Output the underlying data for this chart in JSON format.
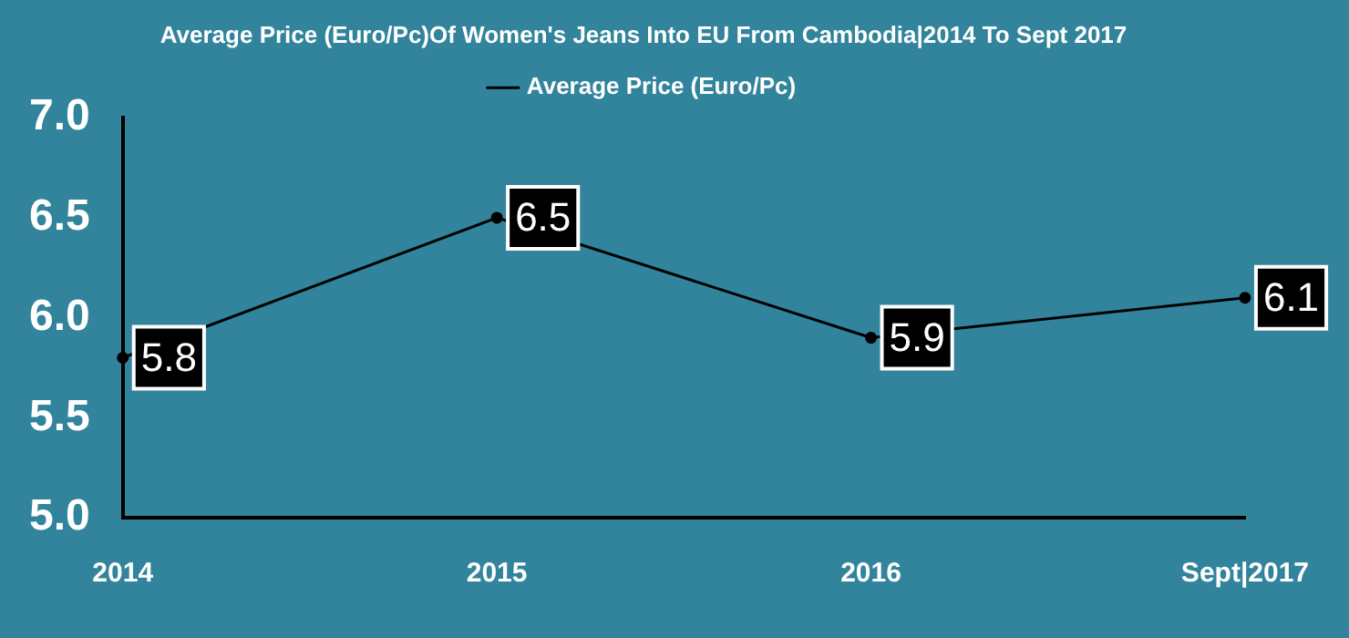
{
  "chart_data": {
    "type": "line",
    "title": "Average Price (Euro/Pc)Of Women's Jeans Into EU From Cambodia|2014 To Sept 2017",
    "categories": [
      "2014",
      "2015",
      "2016",
      "Sept|2017"
    ],
    "series": [
      {
        "name": "Average Price (Euro/Pc)",
        "color": "#000000",
        "values": [
          5.8,
          6.5,
          5.9,
          6.1
        ]
      }
    ],
    "ylim": [
      5,
      7
    ],
    "yticks": [
      {
        "value": 5,
        "label": "5.0"
      },
      {
        "value": 5.5,
        "label": "5.5"
      },
      {
        "value": 6,
        "label": "6.0"
      },
      {
        "value": 6.5,
        "label": "6.5"
      },
      {
        "value": 7,
        "label": "7.0"
      }
    ],
    "grid": false,
    "legend": "top",
    "marker": "circle",
    "data_labels": true
  }
}
